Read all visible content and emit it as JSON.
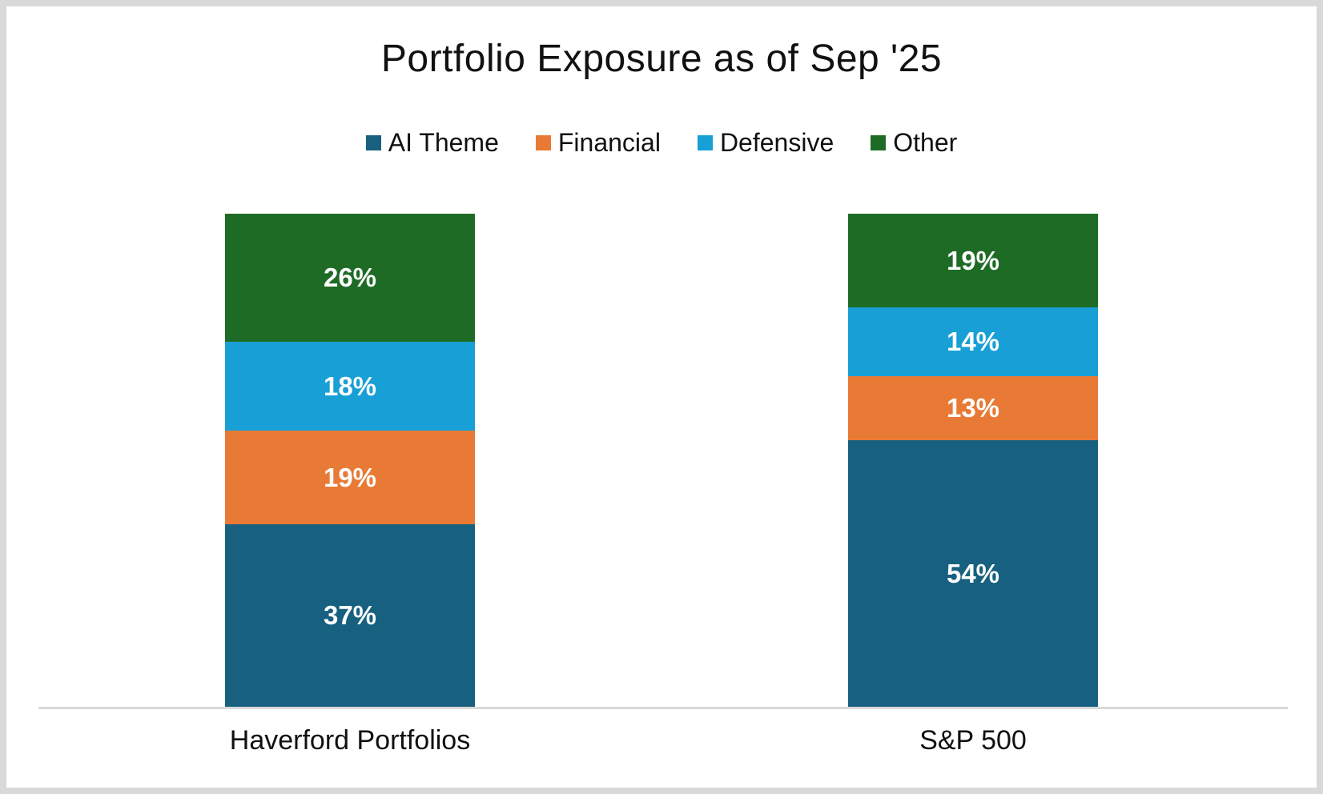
{
  "chart_data": {
    "type": "bar",
    "stacked": true,
    "title": "Portfolio Exposure as of Sep '25",
    "categories": [
      "Haverford Portfolios",
      "S&P 500"
    ],
    "series": [
      {
        "name": "AI Theme",
        "color": "#17607F",
        "values": [
          37,
          54
        ]
      },
      {
        "name": "Financial",
        "color": "#E87A35",
        "values": [
          19,
          13
        ]
      },
      {
        "name": "Defensive",
        "color": "#189FD6",
        "values": [
          18,
          14
        ]
      },
      {
        "name": "Other",
        "color": "#1E6B26",
        "values": [
          26,
          19
        ]
      }
    ],
    "value_format": "{v}%",
    "ylim": [
      0,
      100
    ],
    "y_axis_visible": false,
    "grid": false,
    "legend_position": "top",
    "data_labels": true
  },
  "colors": {
    "frame_border": "#D9D9D9",
    "background": "#FFFFFF",
    "axis_line": "#D9D9D9",
    "text": "#111111",
    "data_label_text": "#FFFFFF"
  }
}
